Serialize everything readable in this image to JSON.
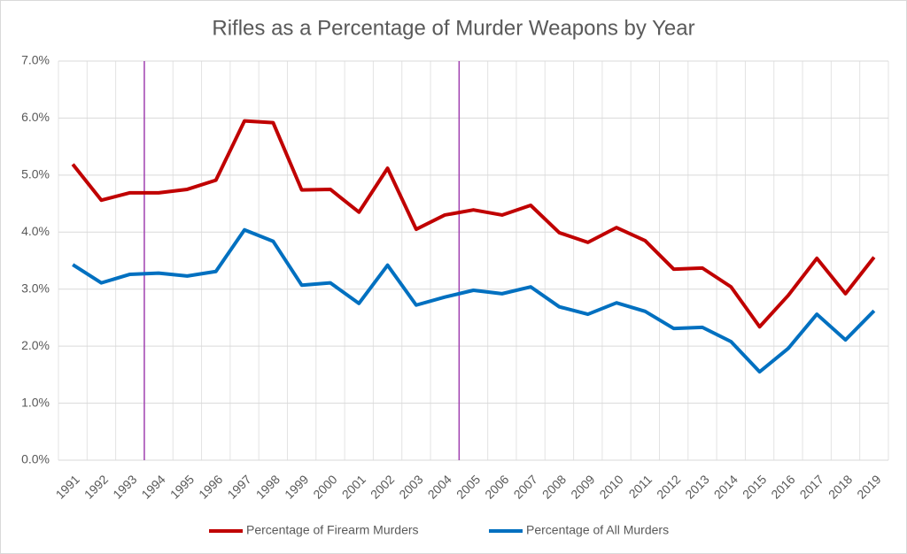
{
  "chart_data": {
    "type": "line",
    "title": "Rifles as a Percentage of Murder Weapons by Year",
    "categories": [
      "1991",
      "1992",
      "1993",
      "1994",
      "1995",
      "1996",
      "1997",
      "1998",
      "1999",
      "2000",
      "2001",
      "2002",
      "2003",
      "2004",
      "2005",
      "2006",
      "2007",
      "2008",
      "2009",
      "2010",
      "2011",
      "2012",
      "2013",
      "2014",
      "2015",
      "2016",
      "2017",
      "2018",
      "2019"
    ],
    "series": [
      {
        "name": "Percentage of Firearm Murders",
        "color": "#c00000",
        "values": [
          5.19,
          4.56,
          4.69,
          4.69,
          4.75,
          4.91,
          5.95,
          5.92,
          4.74,
          4.75,
          4.35,
          5.12,
          4.05,
          4.3,
          4.39,
          4.3,
          4.47,
          3.99,
          3.82,
          4.08,
          3.85,
          3.35,
          3.37,
          3.04,
          2.34,
          2.89,
          3.54,
          2.92,
          3.56
        ]
      },
      {
        "name": "Percentage of All Murders",
        "color": "#0070c0",
        "values": [
          3.43,
          3.11,
          3.26,
          3.28,
          3.23,
          3.31,
          4.04,
          3.84,
          3.07,
          3.11,
          2.75,
          3.42,
          2.72,
          2.86,
          2.98,
          2.92,
          3.04,
          2.69,
          2.56,
          2.76,
          2.61,
          2.31,
          2.33,
          2.08,
          1.55,
          1.96,
          2.56,
          2.11,
          2.62
        ]
      }
    ],
    "ylim": [
      0,
      7
    ],
    "yticks": [
      {
        "value": 0,
        "label": "0.0%"
      },
      {
        "value": 1,
        "label": "1.0%"
      },
      {
        "value": 2,
        "label": "2.0%"
      },
      {
        "value": 3,
        "label": "3.0%"
      },
      {
        "value": 4,
        "label": "4.0%"
      },
      {
        "value": 5,
        "label": "5.0%"
      },
      {
        "value": 6,
        "label": "6.0%"
      },
      {
        "value": 7,
        "label": "7.0%"
      }
    ],
    "grid": true,
    "legend": "bottom"
  }
}
